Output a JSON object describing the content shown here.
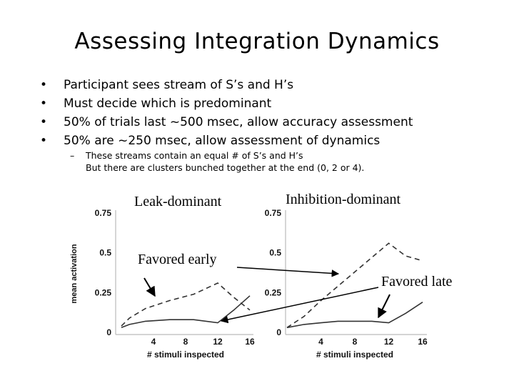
{
  "slide": {
    "title": "Assessing Integration Dynamics",
    "bullet_symbol": "•",
    "bullets": [
      "Participant sees stream of S’s and H’s",
      "Must decide which is predominant",
      "50% of trials last ~500 msec, allow accuracy assessment",
      "50% are ~250 msec, allow assessment of dynamics"
    ],
    "sub_dash": "–",
    "sub_lines": [
      "These streams contain an equal # of S’s and H’s",
      "But there are clusters bunched together at the end (0, 2 or 4)."
    ]
  },
  "labels": {
    "leak": "Leak-dominant",
    "inhibition": "Inhibition-dominant",
    "favored_early": "Favored early",
    "favored_late": "Favored late"
  },
  "chart_data": [
    {
      "type": "line",
      "panel": "left",
      "title": "Leak-dominant",
      "xlabel": "# stimuli inspected",
      "ylabel": "mean activation",
      "x": [
        0,
        4,
        8,
        12,
        16
      ],
      "xticks": [
        "4",
        "8",
        "12",
        "16"
      ],
      "yticks": [
        "0",
        "0.25",
        "0.5",
        "0.75"
      ],
      "xlim": [
        0,
        16
      ],
      "ylim": [
        0,
        0.75
      ],
      "series": [
        {
          "style": "dashed",
          "x": [
            0,
            1,
            3,
            6,
            9,
            12,
            14,
            16
          ],
          "y": [
            0.04,
            0.09,
            0.15,
            0.2,
            0.24,
            0.31,
            0.22,
            0.14
          ]
        },
        {
          "style": "solid",
          "x": [
            0,
            1,
            3,
            6,
            9,
            12,
            14,
            16
          ],
          "y": [
            0.03,
            0.05,
            0.07,
            0.08,
            0.08,
            0.06,
            0.14,
            0.23
          ]
        }
      ]
    },
    {
      "type": "line",
      "panel": "right",
      "title": "Inhibition-dominant",
      "xlabel": "# stimuli inspected",
      "ylabel": "",
      "x": [
        0,
        4,
        8,
        12,
        16
      ],
      "xticks": [
        "4",
        "8",
        "12",
        "16"
      ],
      "yticks": [
        "0",
        "0.25",
        "0.5",
        "0.75"
      ],
      "xlim": [
        0,
        16
      ],
      "ylim": [
        0,
        0.75
      ],
      "series": [
        {
          "style": "dashed",
          "x": [
            0,
            2,
            4,
            6,
            8,
            10,
            12,
            14,
            16
          ],
          "y": [
            0.03,
            0.1,
            0.2,
            0.29,
            0.38,
            0.47,
            0.56,
            0.48,
            0.45
          ]
        },
        {
          "style": "solid",
          "x": [
            0,
            2,
            4,
            6,
            8,
            10,
            12,
            14,
            16
          ],
          "y": [
            0.03,
            0.05,
            0.06,
            0.07,
            0.07,
            0.07,
            0.06,
            0.12,
            0.19
          ]
        }
      ]
    }
  ]
}
